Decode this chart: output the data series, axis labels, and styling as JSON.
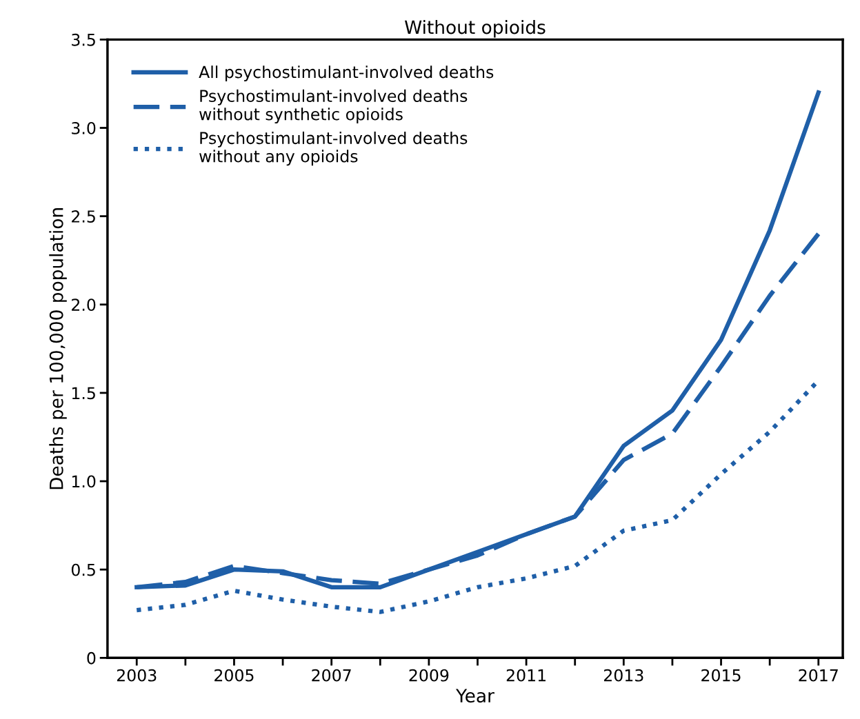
{
  "chart_data": {
    "type": "line",
    "title": "Without opioids",
    "xlabel": "Year",
    "ylabel": "Deaths per 100,000 population",
    "x": [
      2003,
      2004,
      2005,
      2006,
      2007,
      2008,
      2009,
      2010,
      2011,
      2012,
      2013,
      2014,
      2015,
      2016,
      2017
    ],
    "series": [
      {
        "name": "All psychostimulant-involved deaths",
        "color": "#1f5fa8",
        "line_style": "solid",
        "values": [
          0.4,
          0.41,
          0.5,
          0.49,
          0.4,
          0.4,
          0.5,
          0.6,
          0.7,
          0.8,
          1.2,
          1.4,
          1.8,
          2.42,
          3.2
        ]
      },
      {
        "name": "Psychostimulant-involved deaths\nwithout synthetic opioids",
        "color": "#1f5fa8",
        "line_style": "dashed",
        "values": [
          0.4,
          0.43,
          0.52,
          0.48,
          0.44,
          0.42,
          0.5,
          0.58,
          0.7,
          0.8,
          1.12,
          1.27,
          1.65,
          2.05,
          2.4
        ]
      },
      {
        "name": "Psychostimulant-involved deaths\nwithout any opioids",
        "color": "#1f5fa8",
        "line_style": "dotted",
        "values": [
          0.27,
          0.3,
          0.38,
          0.33,
          0.29,
          0.26,
          0.32,
          0.4,
          0.45,
          0.52,
          0.72,
          0.78,
          1.04,
          1.28,
          1.57
        ]
      }
    ],
    "xlim": [
      2002.4,
      2017.5
    ],
    "xticks": [
      2003,
      {
        "value": 2004,
        "label": null
      },
      2005,
      {
        "value": 2006,
        "label": null
      },
      2007,
      {
        "value": 2008,
        "label": null
      },
      2009,
      {
        "value": 2010,
        "label": null
      },
      2011,
      {
        "value": 2012,
        "label": null
      },
      2013,
      {
        "value": 2014,
        "label": null
      },
      2015,
      {
        "value": 2016,
        "label": null
      },
      2017
    ],
    "ylim": [
      0,
      3.5
    ],
    "yticks": [
      0,
      0.5,
      {
        "value": 1,
        "label": "1.0"
      },
      1.5,
      {
        "value": 2,
        "label": "2.0"
      },
      2.5,
      {
        "value": 3,
        "label": "3.0"
      },
      3.5
    ],
    "grid": false,
    "legend": "top left",
    "marker": "none"
  }
}
